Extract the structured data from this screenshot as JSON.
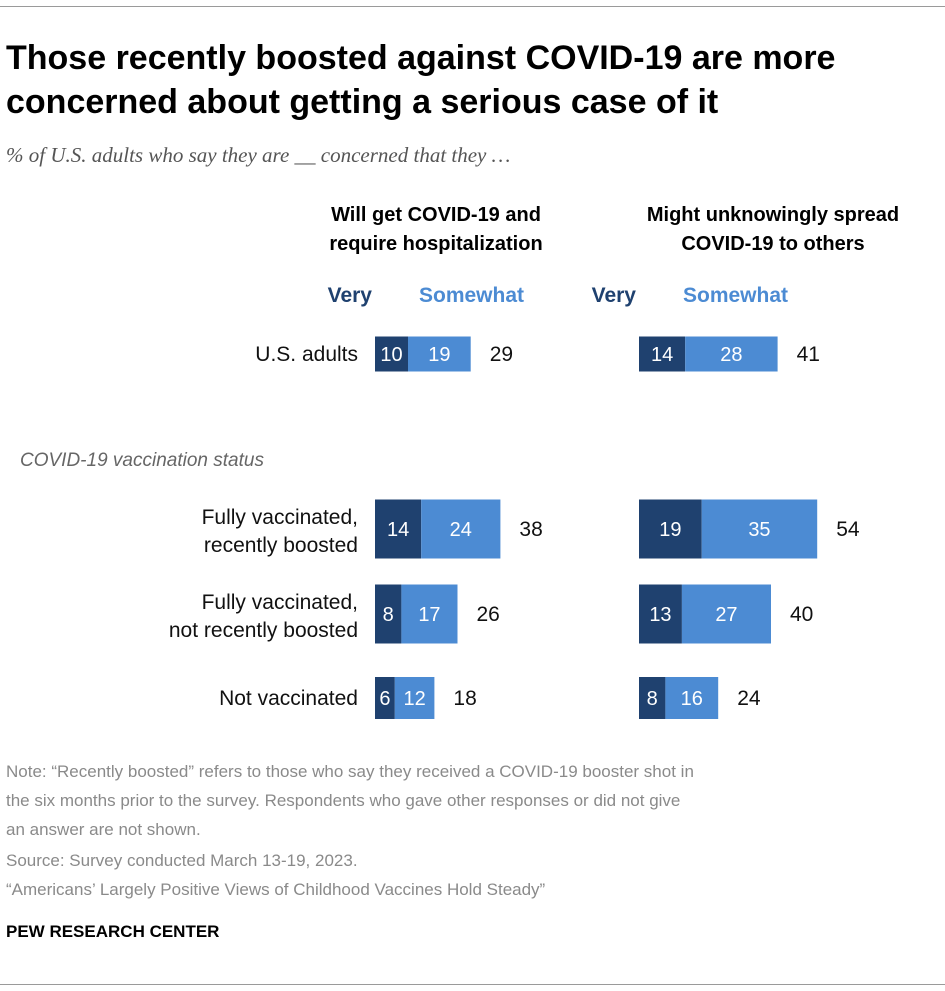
{
  "title": "Those recently boosted against COVID-19 are more concerned about getting a serious case of it",
  "subtitle": "% of U.S. adults who say they are __ concerned that they …",
  "colors": {
    "very": "#1f416f",
    "somewhat": "#4c8bd3",
    "text": "#111111",
    "note": "#8a8a8a"
  },
  "chart_data": {
    "type": "bar",
    "stacked": true,
    "orientation": "horizontal",
    "panels": [
      {
        "title_line1": "Will get COVID-19 and",
        "title_line2": "require hospitalization"
      },
      {
        "title_line1": "Might unknowingly spread",
        "title_line2": "COVID-19 to others"
      }
    ],
    "legend": [
      "Very",
      "Somewhat"
    ],
    "section_label": "COVID-19 vaccination status",
    "categories": [
      {
        "label_lines": [
          "U.S. adults"
        ],
        "values": [
          [
            10,
            19,
            29
          ],
          [
            14,
            28,
            41
          ]
        ]
      },
      {
        "label_lines": [
          "Fully vaccinated,",
          "recently boosted"
        ],
        "values": [
          [
            14,
            24,
            38
          ],
          [
            19,
            35,
            54
          ]
        ]
      },
      {
        "label_lines": [
          "Fully vaccinated,",
          "not recently boosted"
        ],
        "values": [
          [
            8,
            17,
            26
          ],
          [
            13,
            27,
            40
          ]
        ]
      },
      {
        "label_lines": [
          "Not vaccinated"
        ],
        "values": [
          [
            6,
            12,
            18
          ],
          [
            8,
            16,
            24
          ]
        ]
      }
    ]
  },
  "notes": {
    "note_line1": "Note: “Recently boosted” refers to those who say they received a COVID-19 booster shot in",
    "note_line2": "the six months prior to the survey. Respondents who gave other responses or did not give",
    "note_line3": "an answer are not shown.",
    "source": "Source: Survey conducted March 13-19, 2023.",
    "report": "“Americans’ Largely Positive Views of Childhood Vaccines Hold Steady”"
  },
  "brand": "PEW RESEARCH CENTER"
}
